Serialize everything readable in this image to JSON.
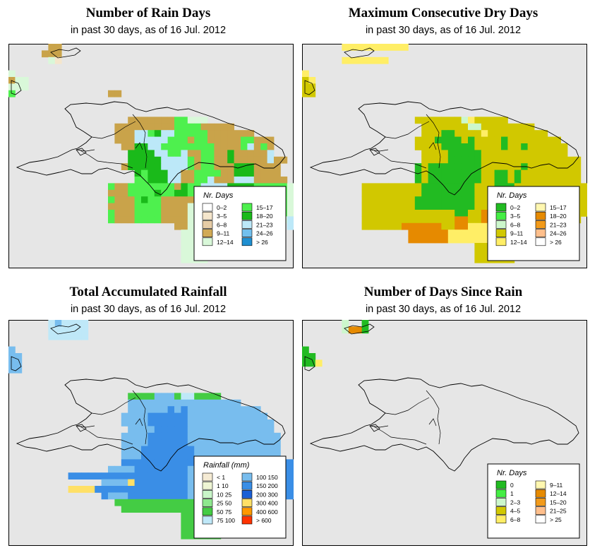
{
  "palettes": {
    "rain_days": [
      "#ffffff",
      "#f5e6cc",
      "#e6cca6",
      "#d1aa55",
      "#c9a34a",
      "#d9f8d9",
      "#4ef04e",
      "#1aba1a",
      "#bce8f8",
      "#72c0ee",
      "#1f8fd1"
    ],
    "dry_days": [
      "#22bb22",
      "#44ee44",
      "#ccf7cc",
      "#d1c800",
      "#ffee66",
      "#fff7b0",
      "#e68a00",
      "#f29a1a",
      "#ffbf8c",
      "#ffffff"
    ],
    "rainfall": [
      "#f5ebd4",
      "#eef5d4",
      "#c8f5c8",
      "#8ee88e",
      "#44cc44",
      "#bfe8f8",
      "#78bdee",
      "#3a8ee6",
      "#1a5fd6",
      "#ffe066",
      "#ff9900",
      "#ff3300"
    ],
    "days_since": [
      "#22bb22",
      "#44ee44",
      "#ccf7cc",
      "#d1c800",
      "#ffee66",
      "#fff7b0",
      "#e68a00",
      "#f29a1a",
      "#ffbf8c",
      "#ffffff"
    ]
  },
  "chart_data": [
    {
      "type": "heatmap",
      "title": "Number of Rain Days",
      "subtitle": "in past 30 days, as of  16 Jul. 2012",
      "legend_title": "Nr. Days",
      "legend": [
        "0–2",
        "3–5",
        "6–8",
        "9–11",
        "12–14",
        "15–17",
        "18–20",
        "21–23",
        "24–26",
        "> 26"
      ],
      "legend_colors": [
        "#ffffff",
        "#f5e6cc",
        "#e6cca6",
        "#d1aa55",
        "#d9f8d9",
        "#4ef04e",
        "#1aba1a",
        "#bce8f8",
        "#72c0ee",
        "#1f8fd1"
      ],
      "legend_position": "bottom-right",
      "palette": "rain_days",
      "cells": "0000003300000000000000000000000000000000000|0000033300000000000000000000000000000000000|0000002500000000000000000000000000000000000|0000000000000000000000000000000000000000000|2000000000000000000000000000000000000000000|3220000000000000000000000000000000000000000|2220000000000000000000000000000000000000000|4000000000000003300000000000000000000000000|0000000000000000000000000000000000000000000|0000000000000000000000000000000000000000000|0000000000000000000000000000000000000000000|0000000000000000003333333442220000000000000|0000000000000000333333333444433333000000000|0000000000000000333664766444443333333000000|0000000000000000333666664443443333344333000|0000000000000000033776644444444333346343000|0000000000000000007777664483344337333338000|0000000000000000007777788884344337333338330|0000000000000000037777788884344333777333300|0000000000000000000747778833444433777333300|0000000000000000000447778833448333888333330|0000000000000004334444444374466667777444442|0000000000000003334444744774766663666444442|0000000000000004333474433333444433666444442|0000000000000003333444433332444433666433242|0000000000000004333444433332244433336444442|0000000000000004333444433332224444444444426|0000000000000000000000000332223300000000006|0000000000000000000000000022223300000000000|0000000000000000000000000022223300000000000|0000000000000000000000000022220000000000000|0000000000000000000000000022220000000000000|0000000000000000000000000022220000000000000"
    },
    {
      "type": "heatmap",
      "title": "Maximum Consecutive Dry Days",
      "subtitle": "in past 30 days, as of  16 Jul. 2012",
      "legend_title": "Nr. Days",
      "legend": [
        "0–2",
        "3–5",
        "6–8",
        "9–11",
        "12–14",
        "15–17",
        "18–20",
        "21–23",
        "24–26",
        "> 26"
      ],
      "legend_colors": [
        "#22bb22",
        "#44ee44",
        "#ccf7cc",
        "#d1c800",
        "#ffee66",
        "#fff7b0",
        "#e68a00",
        "#f29a1a",
        "#ffbf8c",
        "#ffffff"
      ],
      "legend_position": "bottom-right",
      "palette": "dry_days",
      "cells": "0000004444444444000000000000000000000000000|0000000000000000000000000000000000000000000|0000004444444000000000000000000000000000000|0000000000000000000000000000000000000000000|4000000000000000000000000000000000000000000|3400000000000000000000000000000000000000000|3300000000000000000000000000000000000000000|3300000000000000000000000000000000000000000|0000000000000000000000000000000000000000000|0000000000000000000000000000000000000000000|0000000000000000000000000000000000000000000|0000000000000000033333336433333000000000000|0000000000000000003333333553333333300000000|0000000000000000003331133334333333333000000|0000000000000000033311113133331333333330000|0000000000000000033331111133331331333333000|0000000000000000003333111113333333333333000|0000000000000000003333111113333333333333330|0000000000000000013111111113333331333333330|0000000000000000013111111113311313333333330|0000000000000000013111111113311313333333330|0000000003333333331111111133311133333333333|0000000003333333331111111133311133333333333|0000000003333333311111111133311133333333333|0000000003333333311111111133311133333333333|0000000003333333333333311337333333333333333|0000000003333333333333377337333331133333330|0000000003333337777773377444333333333330000|0000000000000000777777444444444433300000000|0000000000000000777777444444444433300000000|0000000000000000000000000033333330000000000|0000000000000000000000000033333300000000000|0000000000000000000000000033333300000000000"
    },
    {
      "type": "heatmap",
      "title": "Total Accumulated Rainfall",
      "subtitle": "in past 30 days, as of  16 Jul. 2012",
      "legend_title": "Rainfall (mm)",
      "legend": [
        "< 1",
        "1   10",
        "10   25",
        "25   50",
        "50   75",
        "75   100",
        "100   150",
        "150   200",
        "200   300",
        "300   400",
        "400   600",
        "> 600"
      ],
      "legend_colors": [
        "#f5ebd4",
        "#eef5d4",
        "#c8f5c8",
        "#8ee88e",
        "#44cc44",
        "#bfe8f8",
        "#78bdee",
        "#3a8ee6",
        "#1a5fd6",
        "#ffe066",
        "#ff9900",
        "#ff3300"
      ],
      "legend_position": "bottom-right",
      "palette": "rainfall",
      "cells": "0000006566660000000000000000000000000000000|0000006666660000000000000000000000000000000|0000006666660000000000000000000000000000000|0000000000000000000000000000000000000000000|5000000000000000000000000000000000000000000|5500000000000000000000000000000000000000000|5500000000000000000000000000000000000000000|5500000000000000000000000000000000000000000|0000000000000000000000000000000000000000000|0000000000000000000000000000000000000000000|0000000000000000000000000000000000000000000|0000000000000000004444777466444400000000000|0000000000000000007777777777777777700000000|0000000000000000007777778787777777777700000|0000000000000000077778888887777777777770000|0000000000000000077778888887777777777777000|0000000000000000007777888887777777777777000|0000000000000000077778888887777777777777700|0000000000000000077778888887777777777777700|0000000000000000077788888888777777777777700|0000000000000000077788888888777777777777700|0000000000000000088888888888777777777788888|0000000000000007777888888887777777777788888|0000000008888888888888888887777777777788888|0000000000000077779888888887777777777788888|0000000009999888888888888887777777777788888|0000000000000087778888888887777777777788888|0000000000000000444444444444444444444400000|0000000000000000044444444444444444444000000|0000000000000000000000000044444400000000000|0000000000000000000000000044444400000000000|0000000000000000000000000044444400000000000|0000000000000000000000000044444400000000000"
    },
    {
      "type": "heatmap",
      "title": "Number of Days Since Rain",
      "subtitle": "in past 30 days, as of  16 Jul. 2012",
      "legend_title": "Nr. Days",
      "legend": [
        "0",
        "1",
        "2–3",
        "4–5",
        "6–8",
        "9–11",
        "12–14",
        "15–20",
        "21–25",
        "> 25"
      ],
      "legend_colors": [
        "#22bb22",
        "#44ee44",
        "#ccf7cc",
        "#d1c800",
        "#ffee66",
        "#fff7b0",
        "#e68a00",
        "#f29a1a",
        "#ffbf8c",
        "#ffffff"
      ],
      "legend_position": "bottom-right",
      "palette": "days_since",
      "cells": "0000003001000000000000000000000000000000000|0000003661000000000000000000000000000000000|0000000000000000000000000000000000000000000|0000000000000000000000000000000000000000000|1000000000000000000000000000000000000000000|1100000000000000000000000000000000000000000|1140000000000000000000000000000000000000000|0000000000000000000000000000000000000000000|0000000000000000000000000000000000000000000|0000000000000000000000000000000000000000000|0000000000000000000000000000000000000000000|0000000000000000000000000000000000000000000|0000000000000000000000000000000000000000000|0000000000000000000000000000000000000000000|0000000000000000000000000000000000000000000|0000000000000000000000000000000000000000000|0000000000000000000000000000000000000000000|0000000000000000000000000000000000000000000|0000000000000000000000000000000000000000000|0000000000000000000000000000000000000000000|0000000000000000000000000000000000000000000|0000000000000000000000000000000000000000000|0000000000000000000000000000000000000000000|0000000000000000000000000000000000000000000|0000000000000000000000000000000000000000000|0000000000000000000000000000000000000000000|0000000000000000000000000000000000000000000|0000000000000000000000000000000000000000000|0000000000000000000000000000000000000000000|0000000000000000000000000000000000000000000|0000000000000000000000000000000000000000000|0000000000000000000000000000000000000000000|0000000000000000000000000000000000000000000"
    }
  ]
}
